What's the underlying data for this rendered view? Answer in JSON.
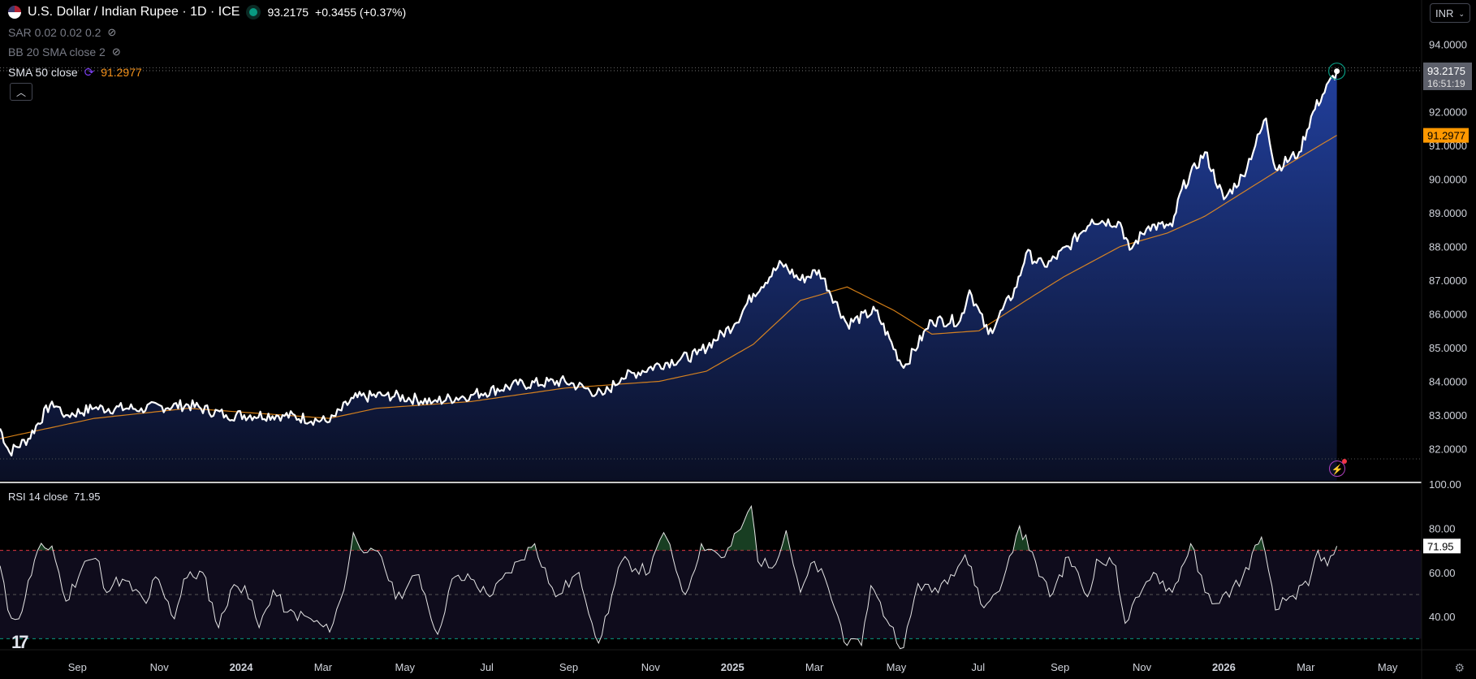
{
  "header": {
    "symbol_title": "U.S. Dollar / Indian Rupee · 1D · ICE",
    "last_price": "93.2175",
    "change": "+0.3455 (+0.37%)",
    "currency_select": "INR",
    "collapse_icon": "chevron-up-icon"
  },
  "indicators": [
    {
      "label": "SAR 0.02 0.02 0.2",
      "icon": "eye-off-icon"
    },
    {
      "label": "BB 20 SMA close 2",
      "icon": "eye-off-icon"
    },
    {
      "label": "SMA 50 close",
      "value": "91.2977",
      "icon": "refresh-icon"
    }
  ],
  "price_axis": {
    "labels": [
      "94.0000",
      "92.0000",
      "91.0000",
      "90.0000",
      "89.0000",
      "88.0000",
      "87.0000",
      "86.0000",
      "85.0000",
      "84.0000",
      "83.0000",
      "82.0000"
    ],
    "current_price_label": "93.2175",
    "countdown": "16:51:19",
    "sma_label": "91.2977"
  },
  "rsi": {
    "legend": "RSI 14 close",
    "value": "71.95",
    "axis_labels": [
      "100.00",
      "80.00",
      "60.00",
      "40.00"
    ]
  },
  "time_axis": {
    "labels": [
      "Sep",
      "Nov",
      "2024",
      "Mar",
      "May",
      "Jul",
      "Sep",
      "Nov",
      "2025",
      "Mar",
      "May",
      "Jul",
      "Sep",
      "Nov",
      "2026",
      "Mar",
      "May"
    ]
  },
  "colors": {
    "line": "#ffffff",
    "sma": "#f7931a",
    "area_top": "#1e3a8a",
    "overbought": "#f23645",
    "oversold": "#089981",
    "price_label_bg": "#5d606b",
    "sma_label_bg": "#ff9800"
  },
  "chart_data": [
    {
      "type": "area",
      "title": "USD/INR 1D",
      "x_unit": "months since 2023-01",
      "xlim": [
        6.11,
        40.83
      ],
      "ylim": [
        81.4,
        94.5
      ],
      "tick_t": [
        8,
        10,
        12,
        14,
        16,
        18,
        20,
        22,
        24,
        26,
        28,
        30,
        32,
        34,
        36,
        38,
        40
      ],
      "price": [
        [
          6.11,
          82.6
        ],
        [
          6.34,
          81.9
        ],
        [
          6.8,
          82.3
        ],
        [
          7.38,
          83.4
        ],
        [
          7.72,
          83.0
        ],
        [
          8.41,
          83.2
        ],
        [
          9.56,
          83.2
        ],
        [
          10.71,
          83.3
        ],
        [
          11.63,
          83.0
        ],
        [
          13.01,
          83.0
        ],
        [
          14.16,
          82.8
        ],
        [
          14.74,
          83.5
        ],
        [
          15.54,
          83.6
        ],
        [
          16.69,
          83.4
        ],
        [
          17.61,
          83.6
        ],
        [
          18.76,
          83.9
        ],
        [
          19.91,
          84.0
        ],
        [
          20.83,
          83.6
        ],
        [
          21.29,
          84.1
        ],
        [
          22.21,
          84.5
        ],
        [
          23.13,
          84.8
        ],
        [
          24.05,
          85.7
        ],
        [
          24.51,
          86.6
        ],
        [
          25.2,
          87.5
        ],
        [
          25.66,
          87.0
        ],
        [
          26.11,
          87.3
        ],
        [
          26.8,
          85.7
        ],
        [
          27.49,
          86.1
        ],
        [
          28.18,
          84.4
        ],
        [
          28.87,
          85.8
        ],
        [
          29.56,
          85.8
        ],
        [
          29.79,
          86.7
        ],
        [
          30.25,
          85.4
        ],
        [
          30.94,
          86.8
        ],
        [
          31.17,
          87.8
        ],
        [
          31.63,
          87.4
        ],
        [
          32.21,
          88.0
        ],
        [
          32.78,
          88.8
        ],
        [
          33.47,
          88.7
        ],
        [
          33.7,
          87.9
        ],
        [
          34.16,
          88.6
        ],
        [
          34.74,
          88.6
        ],
        [
          34.97,
          89.7
        ],
        [
          35.54,
          90.8
        ],
        [
          36.0,
          89.4
        ],
        [
          36.46,
          90.1
        ],
        [
          37.03,
          91.8
        ],
        [
          37.26,
          90.3
        ],
        [
          37.84,
          90.8
        ],
        [
          38.18,
          92.0
        ],
        [
          38.41,
          92.5
        ],
        [
          38.76,
          93.2
        ]
      ],
      "sma50": [
        [
          6.11,
          82.3
        ],
        [
          8.41,
          82.9
        ],
        [
          10.71,
          83.2
        ],
        [
          13.01,
          83.0
        ],
        [
          14.16,
          82.9
        ],
        [
          15.31,
          83.2
        ],
        [
          17.61,
          83.4
        ],
        [
          19.91,
          83.8
        ],
        [
          22.21,
          84.0
        ],
        [
          23.36,
          84.3
        ],
        [
          24.51,
          85.1
        ],
        [
          25.66,
          86.4
        ],
        [
          26.8,
          86.8
        ],
        [
          27.95,
          86.1
        ],
        [
          28.87,
          85.4
        ],
        [
          30.02,
          85.5
        ],
        [
          31.17,
          86.4
        ],
        [
          32.09,
          87.1
        ],
        [
          33.47,
          88.0
        ],
        [
          34.62,
          88.4
        ],
        [
          35.54,
          88.9
        ],
        [
          36.46,
          89.6
        ],
        [
          37.38,
          90.3
        ],
        [
          38.76,
          91.3
        ]
      ]
    },
    {
      "type": "line",
      "title": "RSI 14 close",
      "ylim": [
        20,
        100
      ],
      "levels": [
        70,
        50,
        30
      ],
      "values": [
        [
          6.11,
          63
        ],
        [
          6.3,
          43
        ],
        [
          6.57,
          39
        ],
        [
          7.03,
          70
        ],
        [
          7.38,
          72
        ],
        [
          7.72,
          47
        ],
        [
          8.18,
          65
        ],
        [
          8.53,
          65
        ],
        [
          8.64,
          53
        ],
        [
          9.1,
          57
        ],
        [
          9.68,
          46
        ],
        [
          9.91,
          58
        ],
        [
          10.37,
          39
        ],
        [
          10.6,
          57
        ],
        [
          11.06,
          60
        ],
        [
          11.45,
          35
        ],
        [
          11.74,
          52
        ],
        [
          12.09,
          54
        ],
        [
          12.44,
          35
        ],
        [
          12.78,
          52
        ],
        [
          13.13,
          42
        ],
        [
          13.7,
          39
        ],
        [
          14.16,
          33
        ],
        [
          14.51,
          52
        ],
        [
          14.74,
          78
        ],
        [
          15.08,
          69
        ],
        [
          15.43,
          67
        ],
        [
          15.77,
          48
        ],
        [
          16.34,
          59
        ],
        [
          16.8,
          32
        ],
        [
          17.15,
          57
        ],
        [
          17.61,
          57
        ],
        [
          18.07,
          49
        ],
        [
          18.76,
          65
        ],
        [
          19.17,
          73
        ],
        [
          19.68,
          49
        ],
        [
          20.25,
          60
        ],
        [
          20.73,
          28
        ],
        [
          21.29,
          65
        ],
        [
          21.97,
          60
        ],
        [
          22.32,
          78
        ],
        [
          22.85,
          50
        ],
        [
          23.24,
          73
        ],
        [
          23.81,
          67
        ],
        [
          24.28,
          83
        ],
        [
          24.46,
          90
        ],
        [
          24.62,
          65
        ],
        [
          24.97,
          62
        ],
        [
          25.31,
          79
        ],
        [
          25.66,
          51
        ],
        [
          26.0,
          65
        ],
        [
          26.34,
          53
        ],
        [
          26.8,
          27
        ],
        [
          27.15,
          27
        ],
        [
          27.38,
          54
        ],
        [
          27.84,
          36
        ],
        [
          28.18,
          26
        ],
        [
          28.53,
          55
        ],
        [
          28.87,
          51
        ],
        [
          29.33,
          59
        ],
        [
          29.68,
          68
        ],
        [
          30.14,
          44
        ],
        [
          30.6,
          56
        ],
        [
          31.01,
          81
        ],
        [
          31.4,
          65
        ],
        [
          31.75,
          49
        ],
        [
          32.21,
          67
        ],
        [
          32.67,
          49
        ],
        [
          32.89,
          66
        ],
        [
          33.36,
          63
        ],
        [
          33.59,
          37
        ],
        [
          33.93,
          49
        ],
        [
          34.28,
          60
        ],
        [
          34.74,
          51
        ],
        [
          35.19,
          73
        ],
        [
          35.54,
          51
        ],
        [
          35.89,
          46
        ],
        [
          36.46,
          58
        ],
        [
          36.92,
          76
        ],
        [
          37.26,
          43
        ],
        [
          37.61,
          49
        ],
        [
          38.07,
          54
        ],
        [
          38.3,
          70
        ],
        [
          38.53,
          63
        ],
        [
          38.76,
          71.95
        ]
      ]
    }
  ]
}
